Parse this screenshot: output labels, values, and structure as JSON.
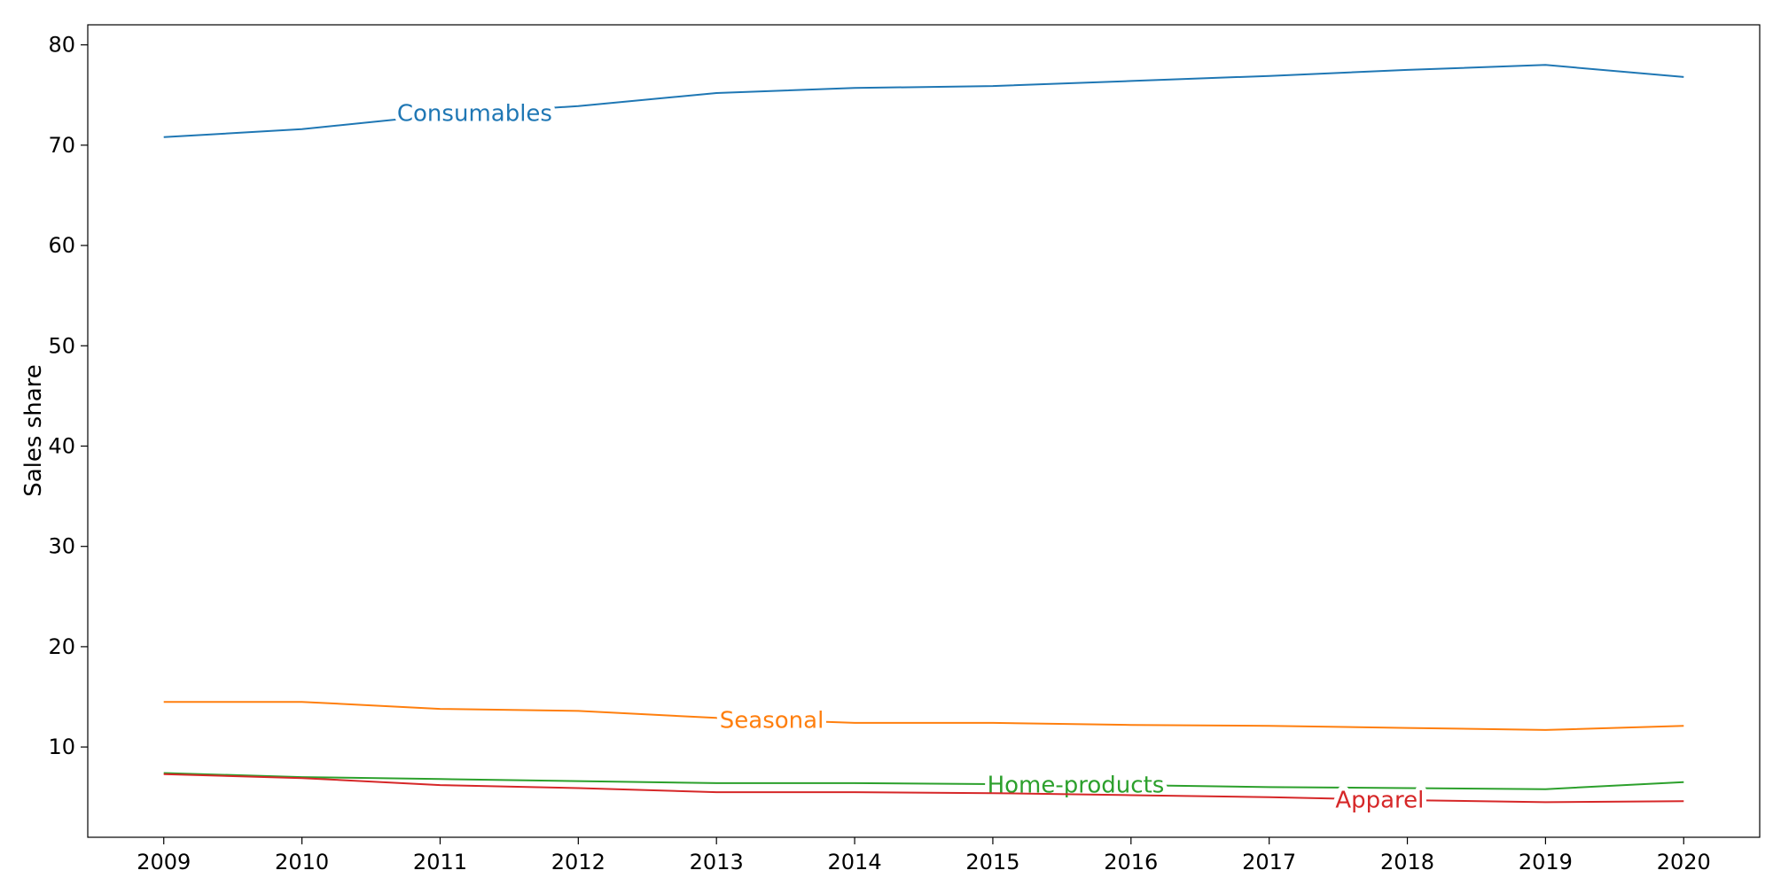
{
  "chart_data": {
    "type": "line",
    "title": "",
    "xlabel": "",
    "ylabel": "Sales share",
    "x": [
      2009,
      2010,
      2011,
      2012,
      2013,
      2014,
      2015,
      2016,
      2017,
      2018,
      2019,
      2020
    ],
    "xlim": [
      2008.45,
      2020.55
    ],
    "ylim": [
      1,
      82
    ],
    "xticks": [
      "2009",
      "2010",
      "2011",
      "2012",
      "2013",
      "2014",
      "2015",
      "2016",
      "2017",
      "2018",
      "2019",
      "2020"
    ],
    "yticks": [
      "10",
      "20",
      "30",
      "40",
      "50",
      "60",
      "70",
      "80"
    ],
    "grid": false,
    "legend": "inline labels",
    "series": [
      {
        "name": "Consumables",
        "color": "#1f77b4",
        "values": [
          70.8,
          71.6,
          73.0,
          73.9,
          75.2,
          75.7,
          75.9,
          76.4,
          76.9,
          77.5,
          78.0,
          76.8
        ],
        "label_at_x": 2011.25
      },
      {
        "name": "Seasonal",
        "color": "#ff7f0e",
        "values": [
          14.5,
          14.5,
          13.8,
          13.6,
          12.9,
          12.4,
          12.4,
          12.2,
          12.1,
          11.9,
          11.7,
          12.1
        ],
        "label_at_x": 2013.4
      },
      {
        "name": "Home-products",
        "color": "#2ca02c",
        "values": [
          7.4,
          7.0,
          6.8,
          6.6,
          6.4,
          6.4,
          6.3,
          6.2,
          6.0,
          5.9,
          5.8,
          6.5
        ],
        "label_at_x": 2015.6
      },
      {
        "name": "Apparel",
        "color": "#d62728",
        "values": [
          7.3,
          6.9,
          6.2,
          5.9,
          5.5,
          5.5,
          5.4,
          5.2,
          5.0,
          4.7,
          4.5,
          4.6
        ],
        "label_at_x": 2017.8
      }
    ]
  }
}
